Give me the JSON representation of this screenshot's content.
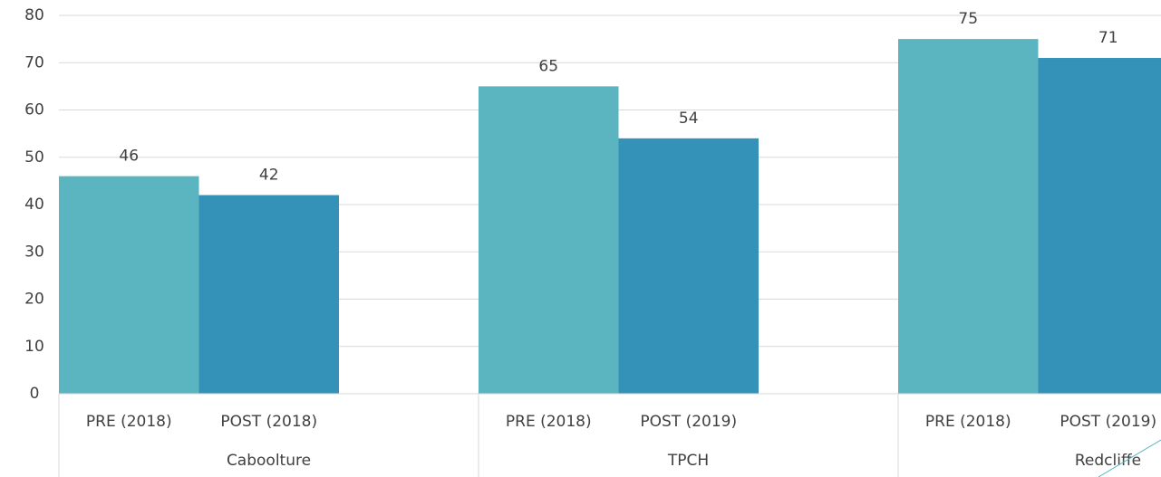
{
  "chart_data": {
    "type": "bar",
    "categories": [
      "Caboolture",
      "TPCH",
      "Redcliffe"
    ],
    "subcategories": [
      [
        "PRE (2018)",
        "POST (2018)"
      ],
      [
        "PRE (2018)",
        "POST (2019)"
      ],
      [
        "PRE (2018)",
        "POST (2019)"
      ]
    ],
    "series": [
      {
        "color": "#5ab5c0",
        "values": [
          46,
          65,
          75
        ]
      },
      {
        "color": "#3492b8",
        "values": [
          42,
          54,
          71
        ]
      }
    ],
    "ylim": [
      0,
      80
    ],
    "yticks": [
      0,
      10,
      20,
      30,
      40,
      50,
      60,
      70,
      80
    ],
    "grid": true
  }
}
